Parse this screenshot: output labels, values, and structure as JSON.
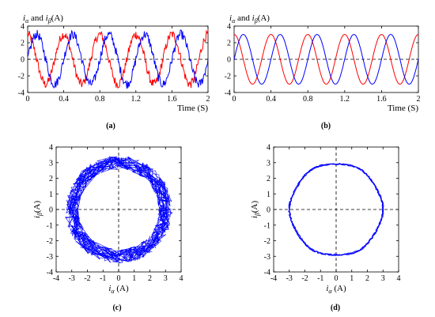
{
  "colors": {
    "red": "#ff0000",
    "blue": "#0000ff",
    "axis": "#000000",
    "dash": "#000000"
  },
  "panel_labels": [
    "(a)",
    "(b)",
    "(c)",
    "(d)"
  ],
  "chart_data": [
    {
      "panel": "(a)",
      "type": "line",
      "xlabel": "Time (S)",
      "ylabel": "i_α and i_β (A)",
      "ylabel_prefix": "i",
      "ylabel_sub1": "α",
      "ylabel_mid": " and ",
      "ylabel_sub2": "β",
      "ylabel_suffix": "(A)",
      "xlim": [
        0,
        2
      ],
      "ylim": [
        -4,
        4
      ],
      "xticks": [
        0,
        0.4,
        0.8,
        1.2,
        1.6,
        2
      ],
      "xtick_labels": [
        "0",
        "0.4",
        "0.8",
        "1.2",
        "1.6",
        "2"
      ],
      "yticks": [
        -4,
        -2,
        0,
        2,
        4
      ],
      "ytick_labels": [
        "-4",
        "-2",
        "0",
        "2",
        "4"
      ],
      "zero_line": "horizontal dashed",
      "noisy": true,
      "series": [
        {
          "color": "red",
          "amplitude": 3.0,
          "frequency_hz": 2.5,
          "phase_deg": 90
        },
        {
          "color": "blue",
          "amplitude": 3.0,
          "frequency_hz": 2.5,
          "phase_deg": 0
        }
      ]
    },
    {
      "panel": "(b)",
      "type": "line",
      "xlabel": "Time (S)",
      "ylabel": "i_α and i_β (A)",
      "ylabel_prefix": "i",
      "ylabel_sub1": "α",
      "ylabel_mid": " and ",
      "ylabel_sub2": "β",
      "ylabel_suffix": "(A)",
      "xlim": [
        0,
        2
      ],
      "ylim": [
        -4,
        4
      ],
      "xticks": [
        0,
        0.4,
        0.8,
        1.2,
        1.6,
        2
      ],
      "xtick_labels": [
        "0",
        "0.4",
        "0.8",
        "1.2",
        "1.6",
        "2"
      ],
      "yticks": [
        -4,
        -2,
        0,
        2,
        4
      ],
      "ytick_labels": [
        "-4",
        "-2",
        "0",
        "2",
        "4"
      ],
      "zero_line": "horizontal dashed",
      "noisy": false,
      "series": [
        {
          "color": "red",
          "amplitude": 3.0,
          "frequency_hz": 2.5,
          "phase_deg": 90
        },
        {
          "color": "blue",
          "amplitude": 3.0,
          "frequency_hz": 2.5,
          "phase_deg": 0
        }
      ]
    },
    {
      "panel": "(c)",
      "type": "line",
      "subtype": "trajectory",
      "xlabel": "i_α (A)",
      "ylabel": "i_β (A)",
      "xlabel_prefix": "i",
      "xlabel_sub": "α",
      "xlabel_suffix": " (A)",
      "ylabel_prefix": "i",
      "ylabel_sub": "β",
      "ylabel_suffix": "(A)",
      "xlim": [
        -4,
        4
      ],
      "ylim": [
        -4,
        4
      ],
      "ticks": [
        -4,
        -3,
        -2,
        -1,
        0,
        1,
        2,
        3,
        4
      ],
      "tick_labels": [
        "-4",
        "-3",
        "-2",
        "-1",
        "0",
        "1",
        "2",
        "3",
        "4"
      ],
      "crosshair": "dashed at x=0 and y=0",
      "radius": 3.0,
      "noisy": true,
      "series": [
        {
          "color": "blue"
        }
      ]
    },
    {
      "panel": "(d)",
      "type": "line",
      "subtype": "trajectory",
      "xlabel": "i_α (A)",
      "ylabel": "i_β (A)",
      "xlabel_prefix": "i",
      "xlabel_sub": "α",
      "xlabel_suffix": " (A)",
      "ylabel_prefix": "i",
      "ylabel_sub": "β",
      "ylabel_suffix": "(A)",
      "xlim": [
        -4,
        4
      ],
      "ylim": [
        -4,
        4
      ],
      "ticks": [
        -4,
        -3,
        -2,
        -1,
        0,
        1,
        2,
        3,
        4
      ],
      "tick_labels": [
        "-4",
        "-3",
        "-2",
        "-1",
        "0",
        "1",
        "2",
        "3",
        "4"
      ],
      "crosshair": "dashed at x=0 and y=0",
      "radius": 2.95,
      "noisy": false,
      "series": [
        {
          "color": "blue"
        }
      ]
    }
  ]
}
